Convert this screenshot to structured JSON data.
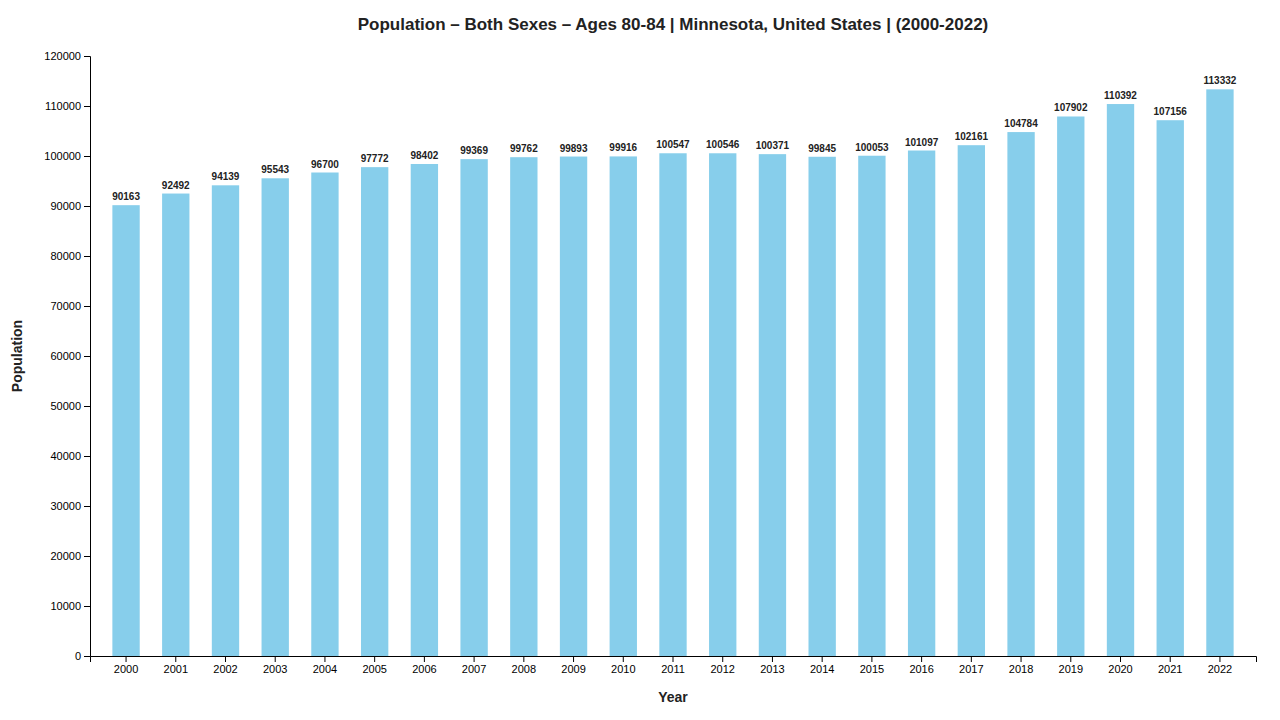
{
  "chart_data": {
    "type": "bar",
    "title": "Population – Both Sexes – Ages 80-84 | Minnesota, United States |  (2000-2022)",
    "x_label": "Year",
    "y_label": "Population",
    "categories": [
      "2000",
      "2001",
      "2002",
      "2003",
      "2004",
      "2005",
      "2006",
      "2007",
      "2008",
      "2009",
      "2010",
      "2011",
      "2012",
      "2013",
      "2014",
      "2015",
      "2016",
      "2017",
      "2018",
      "2019",
      "2020",
      "2021",
      "2022"
    ],
    "values": [
      90163,
      92492,
      94139,
      95543,
      96700,
      97772,
      98402,
      99369,
      99762,
      99893,
      99916,
      100547,
      100546,
      100371,
      99845,
      100053,
      101097,
      102161,
      104784,
      107902,
      110392,
      107156,
      113332
    ],
    "color": "#87CEEB",
    "ylim": [
      0,
      120000
    ],
    "yticks": [
      0,
      10000,
      20000,
      30000,
      40000,
      50000,
      60000,
      70000,
      80000,
      90000,
      100000,
      110000,
      120000
    ],
    "data_labels": true,
    "grid": false
  }
}
